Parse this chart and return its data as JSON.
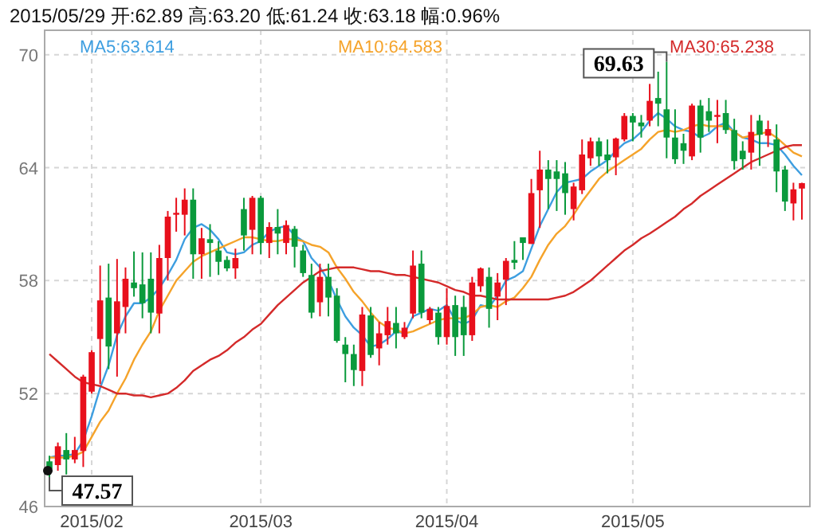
{
  "chart_data": {
    "type": "candlestick",
    "title": "2015/05/29  开:62.89  高:63.20  低:61.24  收:63.18  幅:0.96%",
    "categories": [
      null,
      null,
      null,
      null,
      null,
      "2015/02",
      null,
      null,
      null,
      null,
      null,
      null,
      null,
      null,
      null,
      null,
      null,
      null,
      null,
      null,
      null,
      null,
      null,
      null,
      null,
      "2015/03",
      null,
      null,
      null,
      null,
      null,
      null,
      null,
      null,
      null,
      null,
      null,
      null,
      null,
      null,
      null,
      null,
      null,
      null,
      null,
      null,
      null,
      "2015/04",
      null,
      null,
      null,
      null,
      null,
      null,
      null,
      null,
      null,
      null,
      null,
      null,
      null,
      null,
      null,
      null,
      null,
      null,
      null,
      null,
      null,
      "2015/05",
      null,
      null,
      null,
      null,
      null,
      null,
      null,
      null,
      null,
      null,
      null,
      null,
      null,
      null,
      null,
      null,
      null,
      null,
      null,
      null
    ],
    "ohlc": [
      [
        48.4,
        48.7,
        47.57,
        48.0
      ],
      [
        48.2,
        49.4,
        47.9,
        49.2
      ],
      [
        49.0,
        49.9,
        47.7,
        48.5
      ],
      [
        48.5,
        49.7,
        48.3,
        49.0
      ],
      [
        48.95,
        53.0,
        48.1,
        52.9
      ],
      [
        52.1,
        54.3,
        52.0,
        54.2
      ],
      [
        54.9,
        58.8,
        52.5,
        56.95
      ],
      [
        57.1,
        58.9,
        53.3,
        54.5
      ],
      [
        55.2,
        59.15,
        52.9,
        56.9
      ],
      [
        56.6,
        58.7,
        55.2,
        58.1
      ],
      [
        57.9,
        59.55,
        57.15,
        57.6
      ],
      [
        57.8,
        59.5,
        56.0,
        56.8
      ],
      [
        58.1,
        59.5,
        55.2,
        56.3
      ],
      [
        56.25,
        59.9,
        55.2,
        59.2
      ],
      [
        59.2,
        61.7,
        58.0,
        61.4
      ],
      [
        61.5,
        62.4,
        60.6,
        61.6
      ],
      [
        61.5,
        62.9,
        60.4,
        62.3
      ],
      [
        62.3,
        62.9,
        58.1,
        59.4
      ],
      [
        59.4,
        60.8,
        58.1,
        60.25
      ],
      [
        60.2,
        61.0,
        58.2,
        60.0
      ],
      [
        59.6,
        60.1,
        58.3,
        59.0
      ],
      [
        59.1,
        59.3,
        58.5,
        58.65
      ],
      [
        58.65,
        59.7,
        58.1,
        59.2
      ],
      [
        61.8,
        62.4,
        59.6,
        60.4
      ],
      [
        60.7,
        62.5,
        59.4,
        62.4
      ],
      [
        62.4,
        62.5,
        59.4,
        60.0
      ],
      [
        60.0,
        61.1,
        59.2,
        60.85
      ],
      [
        60.85,
        61.8,
        59.4,
        60.5
      ],
      [
        60.0,
        61.2,
        59.4,
        60.95
      ],
      [
        60.75,
        60.9,
        58.7,
        59.8
      ],
      [
        59.6,
        59.9,
        58.2,
        58.4
      ],
      [
        58.3,
        58.9,
        56.0,
        56.3
      ],
      [
        56.85,
        58.9,
        56.1,
        58.2
      ],
      [
        58.2,
        58.9,
        56.1,
        57.1
      ],
      [
        57.2,
        57.6,
        54.7,
        54.8
      ],
      [
        54.6,
        55.0,
        52.6,
        54.1
      ],
      [
        54.1,
        54.6,
        52.4,
        53.25
      ],
      [
        53.2,
        56.6,
        52.4,
        56.2
      ],
      [
        56.15,
        56.6,
        53.9,
        54.05
      ],
      [
        54.4,
        55.8,
        53.5,
        55.2
      ],
      [
        55.1,
        56.6,
        54.6,
        55.85
      ],
      [
        55.75,
        56.6,
        54.4,
        55.2
      ],
      [
        55.0,
        55.8,
        54.9,
        55.5
      ],
      [
        56.25,
        59.6,
        56.0,
        58.8
      ],
      [
        58.9,
        59.6,
        56.0,
        56.3
      ],
      [
        55.9,
        56.6,
        55.7,
        56.5
      ],
      [
        56.3,
        56.6,
        54.6,
        55.0
      ],
      [
        55.0,
        57.6,
        54.6,
        56.65
      ],
      [
        56.7,
        57.2,
        54.0,
        55.0
      ],
      [
        56.6,
        57.2,
        54.0,
        55.1
      ],
      [
        55.1,
        58.2,
        54.8,
        57.9
      ],
      [
        57.7,
        58.7,
        57.4,
        58.65
      ],
      [
        58.2,
        58.7,
        55.5,
        56.5
      ],
      [
        57.15,
        58.4,
        55.9,
        57.9
      ],
      [
        58.05,
        59.2,
        56.7,
        59.05
      ],
      [
        59.1,
        60.1,
        58.6,
        58.95
      ],
      [
        60.3,
        60.3,
        59.1,
        60.0
      ],
      [
        59.95,
        63.4,
        59.95,
        62.65
      ],
      [
        62.8,
        64.9,
        60.8,
        63.9
      ],
      [
        63.9,
        64.4,
        61.8,
        63.4
      ],
      [
        63.8,
        64.4,
        61.7,
        63.4
      ],
      [
        63.7,
        64.3,
        61.5,
        62.65
      ],
      [
        61.8,
        63.2,
        61.2,
        63.0
      ],
      [
        62.8,
        65.5,
        62.6,
        64.7
      ],
      [
        64.5,
        65.6,
        64.1,
        65.4
      ],
      [
        65.4,
        65.6,
        64.1,
        64.6
      ],
      [
        64.7,
        65.5,
        63.7,
        64.4
      ],
      [
        64.55,
        65.6,
        63.6,
        65.55
      ],
      [
        65.5,
        66.9,
        65.4,
        66.75
      ],
      [
        66.75,
        66.9,
        65.4,
        66.4
      ],
      [
        66.4,
        66.8,
        65.6,
        66.2
      ],
      [
        66.5,
        68.45,
        66.2,
        67.55
      ],
      [
        67.7,
        69.1,
        66.2,
        67.4
      ],
      [
        67.1,
        69.63,
        64.5,
        65.6
      ],
      [
        65.6,
        67.1,
        64.2,
        64.45
      ],
      [
        65.3,
        65.8,
        64.2,
        64.9
      ],
      [
        64.6,
        67.4,
        64.4,
        67.3
      ],
      [
        67.3,
        67.6,
        64.8,
        65.6
      ],
      [
        67.0,
        67.7,
        65.9,
        66.5
      ],
      [
        66.7,
        67.6,
        65.3,
        66.8
      ],
      [
        66.9,
        67.6,
        65.8,
        66.0
      ],
      [
        66.0,
        66.6,
        63.9,
        64.35
      ],
      [
        64.9,
        65.4,
        63.9,
        64.45
      ],
      [
        64.8,
        66.8,
        63.9,
        65.9
      ],
      [
        66.5,
        66.8,
        64.1,
        65.75
      ],
      [
        65.7,
        66.5,
        65.1,
        66.05
      ],
      [
        65.5,
        66.3,
        62.7,
        63.8
      ],
      [
        63.9,
        64.1,
        61.7,
        62.2
      ],
      [
        62.1,
        63.2,
        61.2,
        62.85
      ],
      [
        62.89,
        63.2,
        61.24,
        63.18
      ]
    ],
    "series": [
      {
        "type": "line",
        "name": "MA5:63.614",
        "color": "#3d9ee0",
        "values": [
          48.6,
          48.7,
          48.7,
          48.8,
          49.5,
          50.8,
          52.3,
          53.5,
          55.1,
          56.1,
          56.8,
          56.8,
          57.1,
          57.6,
          58.3,
          59.1,
          60.2,
          60.8,
          61.0,
          60.7,
          60.2,
          59.5,
          59.4,
          59.5,
          59.9,
          60.1,
          60.6,
          60.8,
          60.9,
          60.4,
          60.1,
          59.2,
          58.7,
          58.0,
          57.0,
          56.1,
          55.5,
          55.1,
          54.5,
          54.6,
          54.9,
          55.3,
          55.2,
          56.1,
          56.3,
          56.5,
          56.4,
          56.7,
          55.9,
          55.7,
          55.9,
          56.7,
          56.6,
          57.2,
          58.0,
          58.2,
          58.5,
          59.7,
          60.9,
          61.8,
          62.7,
          63.2,
          63.3,
          63.4,
          63.8,
          64.1,
          64.4,
          64.9,
          65.3,
          65.5,
          65.9,
          66.5,
          66.9,
          66.6,
          66.2,
          66.0,
          65.9,
          65.6,
          65.8,
          66.2,
          66.4,
          65.9,
          65.6,
          65.5,
          65.3,
          65.3,
          65.2,
          64.7,
          64.1,
          63.6
        ]
      },
      {
        "type": "line",
        "name": "MA10:64.583",
        "color": "#f5a32a",
        "values": [
          48.6,
          48.6,
          48.6,
          48.7,
          48.9,
          49.7,
          50.5,
          51.1,
          52.0,
          52.8,
          53.8,
          54.6,
          55.3,
          56.4,
          57.2,
          58.0,
          58.5,
          59.0,
          59.3,
          59.5,
          59.7,
          59.9,
          60.1,
          60.3,
          60.3,
          60.2,
          60.1,
          60.1,
          60.2,
          60.2,
          60.1,
          59.9,
          59.8,
          59.5,
          58.7,
          58.1,
          57.4,
          56.9,
          56.3,
          55.8,
          55.5,
          55.4,
          55.2,
          55.3,
          55.5,
          55.7,
          55.9,
          56.0,
          56.0,
          56.0,
          56.2,
          56.6,
          56.7,
          56.6,
          56.9,
          57.1,
          57.6,
          58.2,
          59.1,
          59.9,
          60.5,
          60.9,
          61.5,
          62.2,
          62.8,
          63.4,
          63.8,
          64.1,
          64.4,
          64.7,
          65.0,
          65.5,
          65.9,
          66.0,
          65.9,
          66.0,
          66.2,
          66.3,
          66.2,
          66.2,
          66.2,
          65.9,
          65.6,
          65.7,
          65.8,
          65.9,
          65.6,
          65.2,
          64.8,
          64.6
        ]
      },
      {
        "type": "line",
        "name": "MA30:65.238",
        "color": "#d42a2a",
        "values": [
          54.1,
          53.7,
          53.3,
          52.9,
          52.6,
          52.5,
          52.4,
          52.2,
          52.0,
          52.0,
          51.9,
          51.9,
          51.8,
          51.9,
          52.0,
          52.3,
          52.7,
          53.2,
          53.5,
          53.8,
          54.0,
          54.3,
          54.7,
          55.0,
          55.4,
          55.7,
          56.2,
          56.7,
          57.1,
          57.5,
          57.9,
          58.2,
          58.5,
          58.6,
          58.7,
          58.7,
          58.7,
          58.6,
          58.5,
          58.5,
          58.4,
          58.3,
          58.3,
          58.2,
          58.1,
          58.0,
          57.9,
          57.7,
          57.5,
          57.4,
          57.2,
          57.2,
          57.1,
          57.0,
          57.0,
          57.0,
          57.0,
          57.0,
          57.0,
          57.0,
          57.1,
          57.2,
          57.4,
          57.7,
          58.0,
          58.4,
          58.8,
          59.2,
          59.6,
          59.9,
          60.25,
          60.5,
          60.8,
          61.1,
          61.4,
          61.8,
          62.1,
          62.5,
          62.8,
          63.1,
          63.4,
          63.7,
          64.0,
          64.3,
          64.5,
          64.7,
          64.9,
          65.1,
          65.2,
          65.2
        ]
      }
    ],
    "annotations": [
      {
        "text": "69.63",
        "y": 69.63
      },
      "47.57"
    ],
    "ylim": [
      46,
      71.3
    ],
    "yticks": [
      46,
      52,
      58,
      64,
      70
    ],
    "grid": true,
    "legend": "top"
  }
}
